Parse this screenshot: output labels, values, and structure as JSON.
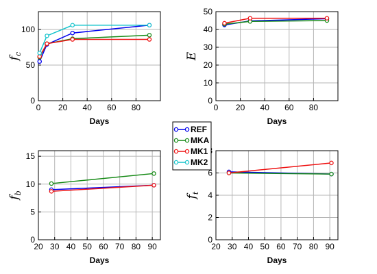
{
  "legend": {
    "entries": [
      {
        "name": "REF",
        "color": "#0000ee"
      },
      {
        "name": "MKA",
        "color": "#168a16"
      },
      {
        "name": "MK1",
        "color": "#ee1111"
      },
      {
        "name": "MK2",
        "color": "#16c4cc"
      }
    ],
    "placement": "center"
  },
  "chart_data": [
    {
      "type": "line",
      "ylabel_main": "f",
      "ylabel_sub": "c",
      "xlabel": "Days",
      "xlim": [
        0,
        100
      ],
      "ylim": [
        0,
        125
      ],
      "xticks": [
        0,
        20,
        40,
        60,
        80
      ],
      "yticks": [
        0,
        50,
        100
      ],
      "grid": true,
      "series": [
        {
          "name": "REF",
          "x": [
            1,
            7,
            28,
            91
          ],
          "y": [
            55,
            79,
            95,
            106
          ]
        },
        {
          "name": "MKA",
          "x": [
            1,
            7,
            28,
            91
          ],
          "y": [
            61,
            80,
            87,
            92
          ]
        },
        {
          "name": "MK1",
          "x": [
            1,
            7,
            28,
            91
          ],
          "y": [
            62,
            80,
            86,
            86
          ]
        },
        {
          "name": "MK2",
          "x": [
            1,
            7,
            28,
            91
          ],
          "y": [
            67,
            91,
            106,
            106
          ]
        }
      ]
    },
    {
      "type": "line",
      "ylabel_main": "E",
      "ylabel_sub": "",
      "xlabel": "Days",
      "xlim": [
        0,
        100
      ],
      "ylim": [
        0,
        50
      ],
      "xticks": [
        0,
        20,
        40,
        60,
        80
      ],
      "yticks": [
        0,
        10,
        20,
        30,
        40,
        50
      ],
      "grid": true,
      "series": [
        {
          "name": "REF",
          "x": [
            7,
            28,
            91
          ],
          "y": [
            42.5,
            44.8,
            46
          ]
        },
        {
          "name": "MKA",
          "x": [
            7,
            28,
            91
          ],
          "y": [
            43,
            44.5,
            45
          ]
        },
        {
          "name": "MK1",
          "x": [
            7,
            28,
            91
          ],
          "y": [
            43.5,
            46.3,
            46.3
          ]
        }
      ]
    },
    {
      "type": "line",
      "ylabel_main": "f",
      "ylabel_sub": "b",
      "xlabel": "Days",
      "xlim": [
        20,
        95
      ],
      "ylim": [
        0,
        16
      ],
      "xticks": [
        20,
        30,
        40,
        50,
        60,
        70,
        80,
        90
      ],
      "yticks": [
        0,
        5,
        10,
        15
      ],
      "grid": true,
      "series": [
        {
          "name": "REF",
          "x": [
            28,
            91
          ],
          "y": [
            9.0,
            9.8
          ]
        },
        {
          "name": "MKA",
          "x": [
            28,
            91
          ],
          "y": [
            10.1,
            11.9
          ]
        },
        {
          "name": "MK1",
          "x": [
            28,
            91
          ],
          "y": [
            8.7,
            9.8
          ]
        }
      ]
    },
    {
      "type": "line",
      "ylabel_main": "f",
      "ylabel_sub": "t",
      "xlabel": "Days",
      "xlim": [
        20,
        95
      ],
      "ylim": [
        0,
        8
      ],
      "xticks": [
        20,
        30,
        40,
        50,
        60,
        70,
        80,
        90
      ],
      "yticks": [
        0,
        2,
        4,
        6,
        8
      ],
      "grid": true,
      "series": [
        {
          "name": "REF",
          "x": [
            28,
            91
          ],
          "y": [
            6.1,
            5.9
          ]
        },
        {
          "name": "MKA",
          "x": [
            28,
            91
          ],
          "y": [
            6.0,
            5.9
          ]
        },
        {
          "name": "MK1",
          "x": [
            28,
            91
          ],
          "y": [
            6.0,
            6.9
          ]
        }
      ]
    }
  ]
}
